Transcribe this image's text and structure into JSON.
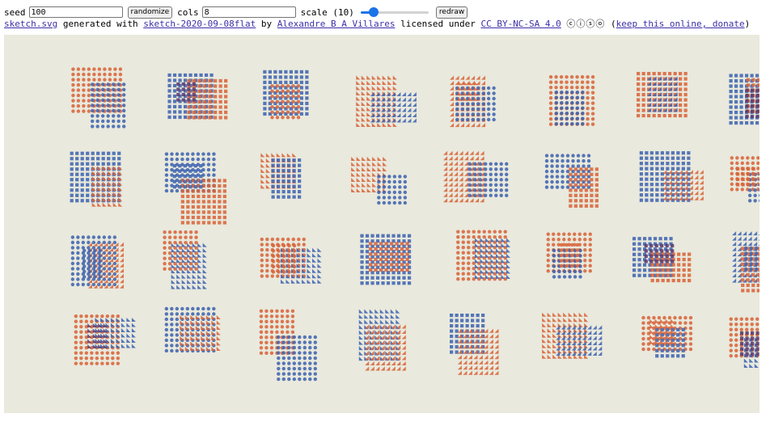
{
  "controls": {
    "seed_label": "seed",
    "seed_value": "100",
    "randomize_label": "randomize",
    "cols_label": "cols",
    "cols_value": "8",
    "scale_label": "scale (10)",
    "scale_value": 10,
    "scale_fraction": 0.14,
    "redraw_label": "redraw"
  },
  "credit": {
    "file_link": "sketch.svg",
    "generated_with": "generated with",
    "tool_link": "sketch-2020-09-08flat",
    "by": "by",
    "author_link": "Alexandre B A Villares",
    "licensed_under": "licensed under",
    "license_link": "CC BY-NC-SA 4.0",
    "license_icons": "ⓒⓘⓢⓞ",
    "open_paren": "(",
    "donate_link": "keep this online, donate",
    "close_paren": ")"
  },
  "sketch": {
    "background": "#e9e9dd",
    "colors": {
      "blue": "#3f64b0",
      "orange": "#d8643a",
      "dark": "#5a3a6e"
    },
    "cols": 8,
    "rows": 4
  }
}
